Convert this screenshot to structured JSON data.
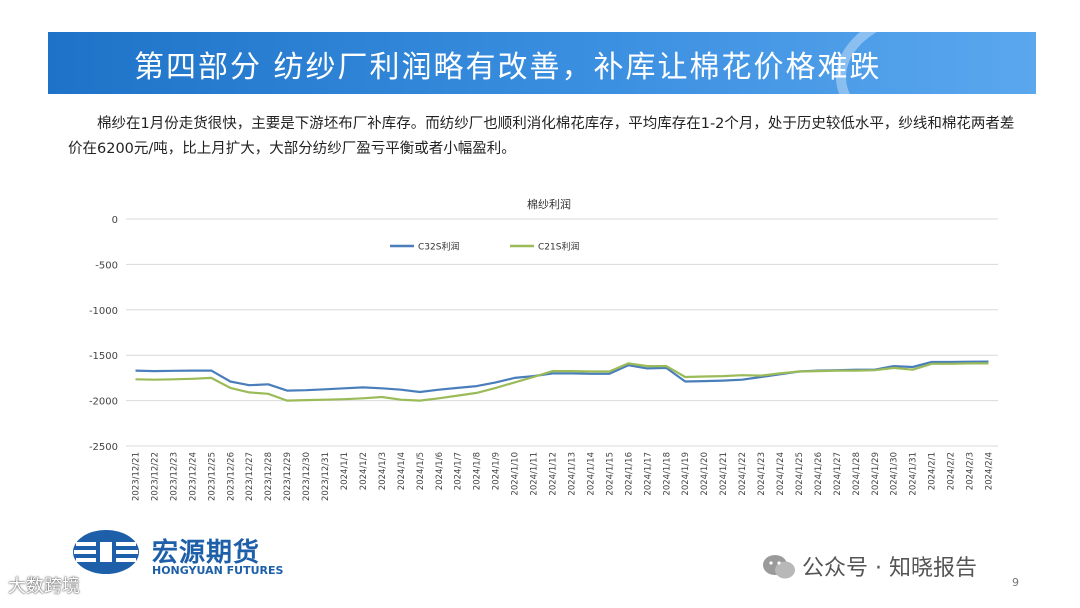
{
  "header": {
    "title": "第四部分  纺纱厂利润略有改善，补库让棉花价格难跌"
  },
  "description": "棉纱在1月份走货很快，主要是下游坯布厂补库存。而纺纱厂也顺利消化棉花库存，平均库存在1-2个月，处于历史较低水平，纱线和棉花两者差价在6200元/吨，比上月扩大，大部分纺纱厂盈亏平衡或者小幅盈利。",
  "chart_data": {
    "type": "line",
    "title": "棉纱利润",
    "ylim": [
      -2500,
      0
    ],
    "yticks": [
      0,
      -500,
      -1000,
      -1500,
      -2000,
      -2500
    ],
    "grid": true,
    "legend_position": "top",
    "x": [
      "2023/12/21",
      "2023/12/22",
      "2023/12/23",
      "2023/12/24",
      "2023/12/25",
      "2023/12/26",
      "2023/12/27",
      "2023/12/28",
      "2023/12/29",
      "2023/12/30",
      "2023/12/31",
      "2024/1/1",
      "2024/1/2",
      "2024/1/3",
      "2024/1/4",
      "2024/1/5",
      "2024/1/6",
      "2024/1/7",
      "2024/1/8",
      "2024/1/9",
      "2024/1/10",
      "2024/1/11",
      "2024/1/12",
      "2024/1/13",
      "2024/1/14",
      "2024/1/15",
      "2024/1/16",
      "2024/1/17",
      "2024/1/18",
      "2024/1/19",
      "2024/1/20",
      "2024/1/21",
      "2024/1/22",
      "2024/1/23",
      "2024/1/24",
      "2024/1/25",
      "2024/1/26",
      "2024/1/27",
      "2024/1/28",
      "2024/1/29",
      "2024/1/30",
      "2024/1/31",
      "2024/2/1",
      "2024/2/2",
      "2024/2/3",
      "2024/2/4"
    ],
    "series": [
      {
        "name": "C32S利润",
        "color": "#4a7ebb",
        "values": [
          -1670,
          -1675,
          -1672,
          -1670,
          -1670,
          -1790,
          -1830,
          -1820,
          -1890,
          -1885,
          -1875,
          -1865,
          -1855,
          -1865,
          -1880,
          -1905,
          -1880,
          -1860,
          -1840,
          -1800,
          -1750,
          -1730,
          -1700,
          -1700,
          -1705,
          -1705,
          -1610,
          -1645,
          -1640,
          -1790,
          -1785,
          -1780,
          -1770,
          -1740,
          -1710,
          -1680,
          -1670,
          -1665,
          -1660,
          -1660,
          -1620,
          -1630,
          -1575,
          -1575,
          -1572,
          -1570
        ]
      },
      {
        "name": "C21S利润",
        "color": "#9bbb59",
        "values": [
          -1765,
          -1770,
          -1765,
          -1760,
          -1750,
          -1860,
          -1910,
          -1925,
          -2000,
          -1995,
          -1990,
          -1985,
          -1975,
          -1960,
          -1990,
          -2000,
          -1975,
          -1945,
          -1915,
          -1860,
          -1800,
          -1740,
          -1675,
          -1675,
          -1680,
          -1680,
          -1590,
          -1620,
          -1620,
          -1740,
          -1735,
          -1730,
          -1720,
          -1725,
          -1700,
          -1680,
          -1675,
          -1670,
          -1670,
          -1665,
          -1640,
          -1660,
          -1595,
          -1595,
          -1590,
          -1590
        ]
      }
    ]
  },
  "logo": {
    "cn": "宏源期货",
    "en": "HONGYUAN FUTURES"
  },
  "watermark_left": "大数跨境",
  "watermark_right": "公众号 · 知晓报告",
  "page_number": "9"
}
